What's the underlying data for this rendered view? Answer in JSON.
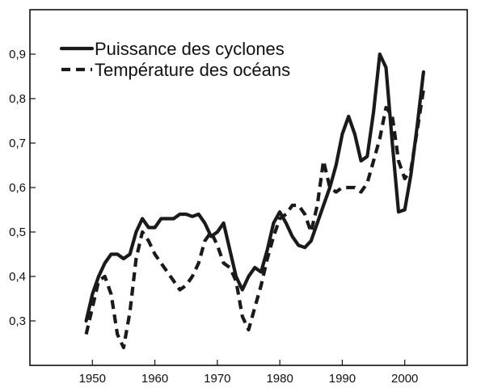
{
  "chart_data": {
    "type": "line",
    "title": "",
    "xlabel": "",
    "ylabel": "",
    "xlim": [
      1940,
      2010
    ],
    "ylim": [
      0.2,
      1.0
    ],
    "x_ticks": [
      1950,
      1960,
      1970,
      1980,
      1990,
      2000
    ],
    "x_tick_labels": [
      "1950",
      "1960",
      "1970",
      "1980",
      "1990",
      "2000"
    ],
    "y_ticks": [
      0.3,
      0.4,
      0.5,
      0.6,
      0.7,
      0.8,
      0.9
    ],
    "y_tick_labels": [
      "0,3",
      "0,4",
      "0,5",
      "0,6",
      "0,7",
      "0,8",
      "0,9"
    ],
    "grid": false,
    "legend_position": "top-left",
    "series": [
      {
        "name": "Puissance des cyclones",
        "style": "solid",
        "color": "#1a1a1a",
        "x": [
          1949,
          1950,
          1951,
          1952,
          1953,
          1954,
          1955,
          1956,
          1957,
          1958,
          1959,
          1960,
          1961,
          1962,
          1963,
          1964,
          1965,
          1966,
          1967,
          1968,
          1969,
          1970,
          1971,
          1972,
          1973,
          1974,
          1975,
          1976,
          1977,
          1978,
          1979,
          1980,
          1981,
          1982,
          1983,
          1984,
          1985,
          1986,
          1987,
          1988,
          1989,
          1990,
          1991,
          1992,
          1993,
          1994,
          1995,
          1996,
          1997,
          1998,
          1999,
          2000,
          2001,
          2002,
          2003
        ],
        "values": [
          0.3,
          0.36,
          0.4,
          0.43,
          0.45,
          0.45,
          0.44,
          0.45,
          0.5,
          0.53,
          0.51,
          0.51,
          0.53,
          0.53,
          0.53,
          0.54,
          0.54,
          0.535,
          0.54,
          0.52,
          0.49,
          0.5,
          0.52,
          0.46,
          0.4,
          0.37,
          0.4,
          0.42,
          0.41,
          0.46,
          0.52,
          0.545,
          0.52,
          0.49,
          0.47,
          0.465,
          0.48,
          0.52,
          0.56,
          0.6,
          0.65,
          0.72,
          0.76,
          0.72,
          0.66,
          0.67,
          0.77,
          0.9,
          0.87,
          0.7,
          0.545,
          0.55,
          0.63,
          0.74,
          0.86
        ]
      },
      {
        "name": "Température des océans",
        "style": "dashed",
        "color": "#1a1a1a",
        "x": [
          1949,
          1950,
          1951,
          1952,
          1953,
          1954,
          1955,
          1956,
          1957,
          1958,
          1959,
          1960,
          1961,
          1962,
          1963,
          1964,
          1965,
          1966,
          1967,
          1968,
          1969,
          1970,
          1971,
          1972,
          1973,
          1974,
          1975,
          1976,
          1977,
          1978,
          1979,
          1980,
          1981,
          1982,
          1983,
          1984,
          1985,
          1986,
          1987,
          1988,
          1989,
          1990,
          1991,
          1992,
          1993,
          1994,
          1995,
          1996,
          1997,
          1998,
          1999,
          2000,
          2001,
          2002,
          2003
        ],
        "values": [
          0.27,
          0.33,
          0.39,
          0.4,
          0.36,
          0.27,
          0.24,
          0.32,
          0.44,
          0.5,
          0.48,
          0.45,
          0.43,
          0.41,
          0.39,
          0.37,
          0.38,
          0.4,
          0.43,
          0.48,
          0.5,
          0.47,
          0.43,
          0.42,
          0.39,
          0.31,
          0.28,
          0.33,
          0.38,
          0.44,
          0.49,
          0.53,
          0.54,
          0.56,
          0.56,
          0.54,
          0.5,
          0.56,
          0.66,
          0.6,
          0.59,
          0.6,
          0.6,
          0.6,
          0.59,
          0.61,
          0.66,
          0.71,
          0.78,
          0.76,
          0.66,
          0.62,
          0.64,
          0.73,
          0.82
        ]
      }
    ]
  }
}
